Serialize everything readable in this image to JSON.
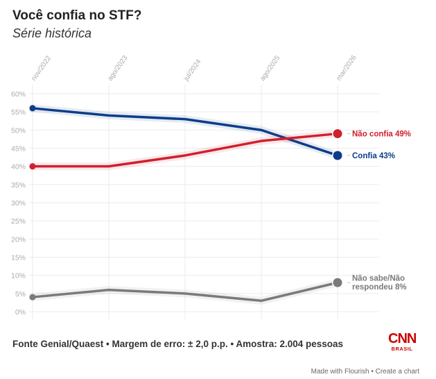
{
  "header": {
    "title": "Você confia no STF?",
    "subtitle": "Série histórica"
  },
  "chart_data": {
    "type": "line",
    "title": "Você confia no STF?",
    "subtitle": "Série histórica",
    "xlabel": "",
    "ylabel": "",
    "categories": [
      "nov/2022",
      "ago/2023",
      "jul/2024",
      "ago/2025",
      "mar/2026"
    ],
    "ylim": [
      0,
      60
    ],
    "yticks": [
      0,
      5,
      10,
      15,
      20,
      25,
      30,
      35,
      40,
      45,
      50,
      55,
      60
    ],
    "ytick_labels": [
      "0%",
      "5%",
      "10%",
      "15%",
      "20%",
      "25%",
      "30%",
      "35%",
      "40%",
      "45%",
      "50%",
      "55%",
      "60%"
    ],
    "grid": true,
    "legend": "direct labels at line ends (right)",
    "series": [
      {
        "name": "Confia",
        "label": "Confia 43%",
        "color": "#0d3d8a",
        "values": [
          56,
          54,
          53,
          50,
          43
        ]
      },
      {
        "name": "Não confia",
        "label": "Não confia 49%",
        "color": "#d0202e",
        "values": [
          40,
          40,
          43,
          47,
          49
        ]
      },
      {
        "name": "Não sabe/Não respondeu",
        "label_lines": [
          "Não sabe/Não",
          "respondeu 8%"
        ],
        "color": "#7a7a7a",
        "values": [
          4,
          6,
          5,
          3,
          8
        ]
      }
    ]
  },
  "footer": {
    "source": "Fonte Genial/Quaest • Margem de erro: ± 2,0 p.p. • Amostra: 2.004 pessoas",
    "logo_main": "CNN",
    "logo_sub": "BRASIL",
    "credit_made": "Made with Flourish",
    "credit_sep": " • ",
    "credit_create": "Create a chart"
  }
}
